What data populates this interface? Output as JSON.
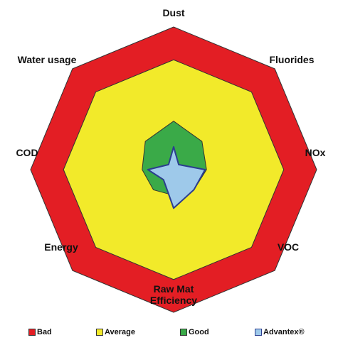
{
  "chart_data": {
    "type": "radar",
    "categories": [
      "Dust",
      "Fluorides",
      "NOx",
      "VOC",
      "Raw Mat Efficiency",
      "Energy",
      "COD",
      "Water usage"
    ],
    "series": [
      {
        "name": "Bad",
        "color": "#e31e24",
        "values": [
          100,
          100,
          100,
          100,
          100,
          100,
          100,
          100
        ]
      },
      {
        "name": "Average",
        "color": "#f2ea2a",
        "values": [
          77,
          77,
          77,
          77,
          77,
          77,
          77,
          77
        ]
      },
      {
        "name": "Good",
        "color": "#3aaa48",
        "values": [
          34,
          28,
          23,
          20,
          18,
          20,
          22,
          28
        ]
      },
      {
        "name": "Advantex®",
        "color": "#9ec9ea",
        "values": [
          16,
          5,
          22,
          20,
          27,
          10,
          18,
          5
        ]
      }
    ],
    "ylim": [
      0,
      100
    ]
  }
}
